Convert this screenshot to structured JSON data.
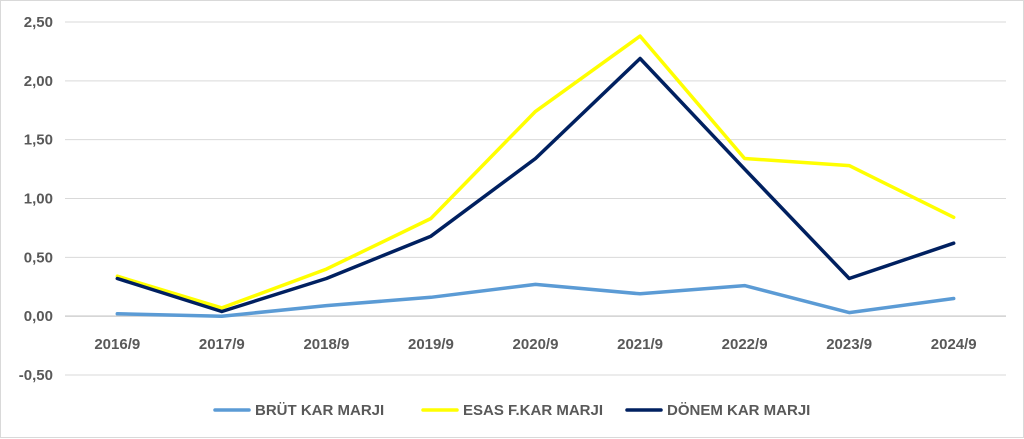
{
  "chart_data": {
    "type": "line",
    "categories": [
      "2016/9",
      "2017/9",
      "2018/9",
      "2019/9",
      "2020/9",
      "2021/9",
      "2022/9",
      "2023/9",
      "2024/9"
    ],
    "series": [
      {
        "name": "BRÜT KAR MARJI",
        "color": "#5b9bd5",
        "values": [
          0.02,
          0.0,
          0.09,
          0.16,
          0.27,
          0.19,
          0.26,
          0.03,
          0.15
        ]
      },
      {
        "name": "ESAS F.KAR MARJI",
        "color": "#ffff00",
        "values": [
          0.34,
          0.07,
          0.4,
          0.83,
          1.74,
          2.38,
          1.34,
          1.28,
          0.84
        ]
      },
      {
        "name": "DÖNEM KAR MARJI",
        "color": "#002060",
        "values": [
          0.32,
          0.04,
          0.32,
          0.68,
          1.34,
          2.19,
          1.25,
          0.32,
          0.62
        ]
      }
    ],
    "y_ticks": [
      "2,50",
      "2,00",
      "1,50",
      "1,00",
      "0,50",
      "0,00",
      "-0,50"
    ],
    "y_tick_values": [
      2.5,
      2.0,
      1.5,
      1.0,
      0.5,
      0.0,
      -0.5
    ],
    "ylim": [
      -0.5,
      2.5
    ],
    "grid": true,
    "legend_position": "bottom"
  }
}
